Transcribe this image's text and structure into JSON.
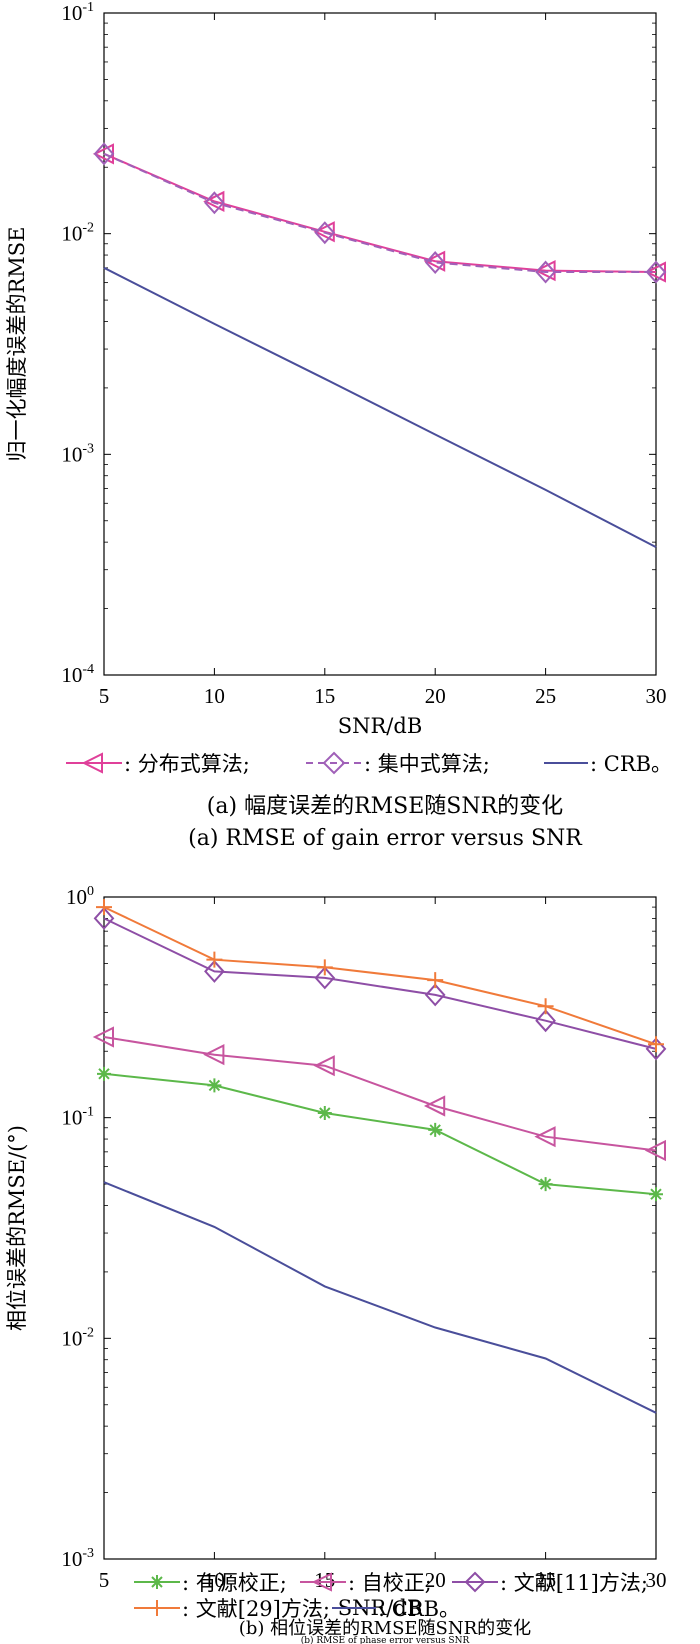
{
  "chart_data": [
    {
      "type": "line",
      "ylabel": "归一化幅度误差的RMSE",
      "xlabel": "SNR/dB",
      "xlim": [
        5,
        30
      ],
      "ylim": [
        0.0001,
        0.1
      ],
      "yscale": "log",
      "x_ticks": [
        "5",
        "10",
        "15",
        "20",
        "25",
        "30"
      ],
      "y_ticks": [
        {
          "base": "10",
          "exp": "-4",
          "value": 0.0001
        },
        {
          "base": "10",
          "exp": "-3",
          "value": 0.001
        },
        {
          "base": "10",
          "exp": "-2",
          "value": 0.01
        },
        {
          "base": "10",
          "exp": "-1",
          "value": 0.1
        }
      ],
      "x": [
        5,
        10,
        15,
        20,
        25,
        30
      ],
      "series": [
        {
          "name": "分布式算法",
          "legend_label": "—◁—: 分布式算法;",
          "marker": "triangle-left",
          "dash": false,
          "color": "#e0409a",
          "values": [
            0.023,
            0.014,
            0.0102,
            0.0075,
            0.0068,
            0.0067
          ]
        },
        {
          "name": "集中式算法",
          "legend_label": "-◇-: 集中式算法;",
          "marker": "diamond",
          "dash": true,
          "color": "#a060b8",
          "values": [
            0.023,
            0.0138,
            0.0101,
            0.0074,
            0.0067,
            0.0067
          ]
        },
        {
          "name": "CRB",
          "legend_label": "—: CRB。",
          "marker": "none",
          "dash": false,
          "color": "#4a4e9a",
          "values": [
            0.007,
            0.0039,
            0.0022,
            0.00123,
            0.00069,
            0.00038
          ]
        }
      ],
      "legend_items": [
        ": 分布式算法;",
        ": 集中式算法;",
        ": CRB。"
      ],
      "caption_cn": "(a) 幅度误差的RMSE随SNR的变化",
      "caption_en": "(a) RMSE of gain error versus SNR"
    },
    {
      "type": "line",
      "ylabel": "相位误差的RMSE/(°)",
      "xlabel": "SNR/dB",
      "xlim": [
        5,
        30
      ],
      "ylim": [
        0.001,
        1
      ],
      "yscale": "log",
      "x_ticks": [
        "5",
        "10",
        "15",
        "20",
        "25",
        "30"
      ],
      "y_ticks": [
        {
          "base": "10",
          "exp": "-3",
          "value": 0.001
        },
        {
          "base": "10",
          "exp": "-2",
          "value": 0.01
        },
        {
          "base": "10",
          "exp": "-1",
          "value": 0.1
        },
        {
          "base": "10",
          "exp": "0",
          "value": 1
        }
      ],
      "x": [
        5,
        10,
        15,
        20,
        25,
        30
      ],
      "series": [
        {
          "name": "有源校正",
          "marker": "asterisk",
          "dash": false,
          "color": "#5cb84a",
          "values": [
            0.158,
            0.14,
            0.105,
            0.088,
            0.05,
            0.045
          ]
        },
        {
          "name": "自校正",
          "marker": "triangle-left",
          "dash": false,
          "color": "#c7559f",
          "values": [
            0.232,
            0.193,
            0.172,
            0.113,
            0.082,
            0.071
          ]
        },
        {
          "name": "文献[11]方法",
          "marker": "diamond",
          "dash": false,
          "color": "#8e4ea6",
          "values": [
            0.8,
            0.46,
            0.43,
            0.36,
            0.275,
            0.205
          ]
        },
        {
          "name": "文献[29]方法",
          "marker": "plus",
          "dash": false,
          "color": "#f07a3a",
          "values": [
            0.9,
            0.52,
            0.48,
            0.42,
            0.32,
            0.215
          ]
        },
        {
          "name": "CRB",
          "marker": "none",
          "dash": false,
          "color": "#4a4e9a",
          "values": [
            0.051,
            0.032,
            0.0172,
            0.0112,
            0.0081,
            0.0046
          ]
        }
      ],
      "legend_items": [
        ": 有源校正;",
        ": 自校正;",
        ": 文献[11]方法;",
        ": 文献[29]方法;",
        ": CRB。"
      ],
      "caption_cn": "(b) 相位误差的RMSE随SNR的变化",
      "caption_en": "(b) RMSE of phase error versus SNR"
    }
  ]
}
